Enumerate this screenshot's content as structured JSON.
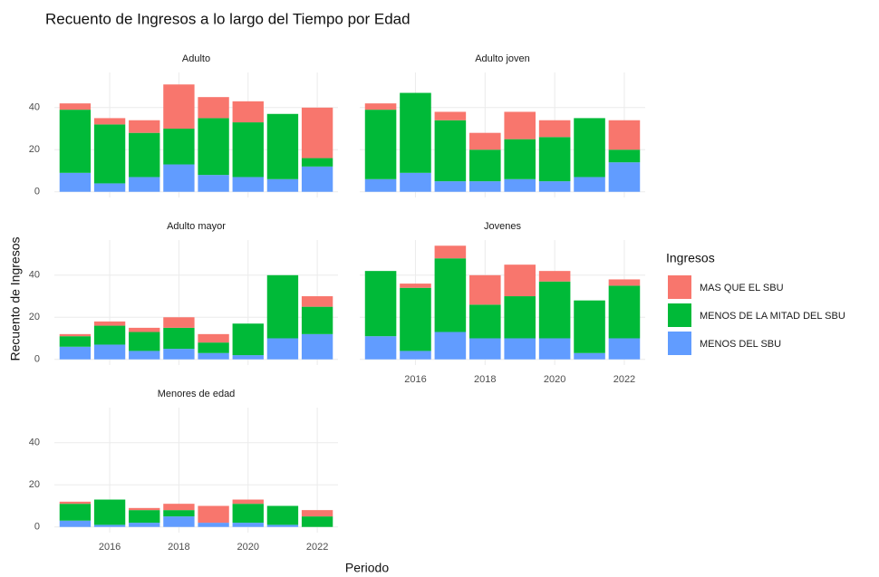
{
  "chart_data": {
    "type": "bar",
    "title": "Recuento de Ingresos a lo largo del Tiempo por Edad",
    "xlabel": "Periodo",
    "ylabel": "Recuento de Ingresos",
    "legend_title": "Ingresos",
    "stacked": true,
    "grid": true,
    "legend_position": "right",
    "categories": [
      2015,
      2016,
      2017,
      2018,
      2019,
      2020,
      2021,
      2022
    ],
    "xlim": [
      2014.4,
      2022.6
    ],
    "xticks": [
      2016,
      2018,
      2020,
      2022
    ],
    "ylim": [
      -2.7,
      56.7
    ],
    "yticks": [
      0,
      20,
      40
    ],
    "series_names": [
      "MAS QUE EL SBU",
      "MENOS DE LA MITAD DEL SBU",
      "MENOS DEL SBU"
    ],
    "series_colors": [
      "#F8766D",
      "#00BA38",
      "#619CFF"
    ],
    "facets": [
      {
        "title": "Adulto",
        "series": [
          {
            "values": [
              3,
              3,
              6,
              21,
              10,
              10,
              0,
              24
            ]
          },
          {
            "values": [
              30,
              28,
              21,
              17,
              27,
              26,
              31,
              4
            ]
          },
          {
            "values": [
              9,
              4,
              7,
              13,
              8,
              7,
              6,
              12
            ]
          }
        ]
      },
      {
        "title": "Adulto joven",
        "series": [
          {
            "values": [
              3,
              0,
              4,
              8,
              13,
              8,
              0,
              14
            ]
          },
          {
            "values": [
              33,
              38,
              29,
              15,
              19,
              21,
              28,
              6
            ]
          },
          {
            "values": [
              6,
              9,
              5,
              5,
              6,
              5,
              7,
              14
            ]
          }
        ]
      },
      {
        "title": "Adulto mayor",
        "series": [
          {
            "values": [
              1,
              2,
              2,
              5,
              4,
              0,
              0,
              5
            ]
          },
          {
            "values": [
              5,
              9,
              9,
              10,
              5,
              15,
              30,
              13
            ]
          },
          {
            "values": [
              6,
              7,
              4,
              5,
              3,
              2,
              10,
              12
            ]
          }
        ]
      },
      {
        "title": "Jovenes",
        "series": [
          {
            "values": [
              0,
              2,
              6,
              14,
              15,
              5,
              0,
              3
            ]
          },
          {
            "values": [
              31,
              30,
              35,
              16,
              20,
              27,
              25,
              25
            ]
          },
          {
            "values": [
              11,
              4,
              13,
              10,
              10,
              10,
              3,
              10
            ]
          }
        ]
      },
      {
        "title": "Menores de edad",
        "series": [
          {
            "values": [
              1,
              0,
              1,
              3,
              8,
              2,
              0,
              3
            ]
          },
          {
            "values": [
              8,
              12,
              6,
              3,
              0,
              9,
              9,
              5
            ]
          },
          {
            "values": [
              3,
              1,
              2,
              5,
              2,
              2,
              1,
              0
            ]
          }
        ]
      }
    ]
  }
}
